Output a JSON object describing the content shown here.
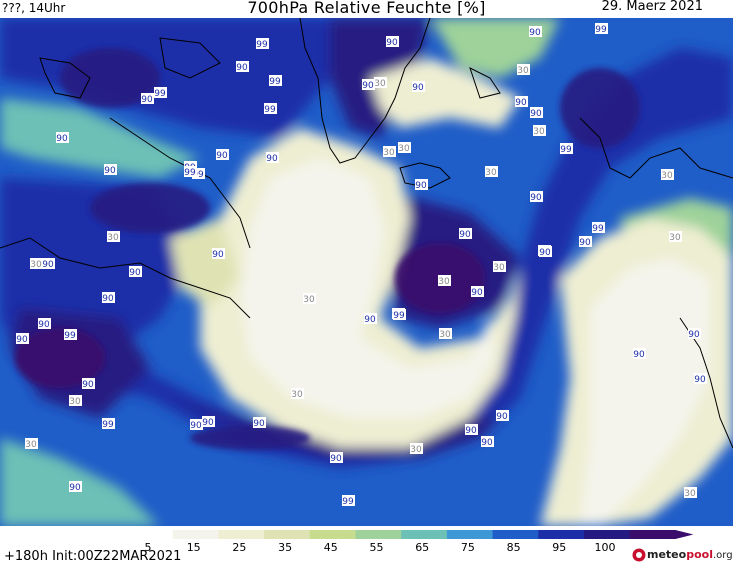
{
  "header": {
    "left": "???, 14Uhr",
    "title": "700hPa Relative Feuchte [%]",
    "date": "29. Maerz 2021"
  },
  "footer": {
    "forecast": "+180h Init:00Z22MAR2021",
    "logo_brand": "meteo",
    "logo_brand2": "pool",
    "logo_tld": ".org"
  },
  "colorbar": {
    "ticks": [
      "5",
      "15",
      "25",
      "35",
      "45",
      "55",
      "65",
      "75",
      "85",
      "95",
      "100"
    ],
    "colors": [
      "#ffffff",
      "#f4f4ec",
      "#eeeed2",
      "#dfe3b4",
      "#c8dc8f",
      "#9ed29a",
      "#6cc0b6",
      "#3d98d5",
      "#1f5dc8",
      "#1d2fa8",
      "#251a82",
      "#3a0d6c"
    ]
  },
  "contour_labels": [
    "99",
    "90",
    "99",
    "90",
    "99",
    "90",
    "99",
    "90",
    "99",
    "99",
    "90",
    "99",
    "90",
    "30",
    "90",
    "90",
    "90",
    "30",
    "90",
    "90",
    "99",
    "90",
    "30",
    "90",
    "30",
    "30",
    "30",
    "30",
    "90",
    "99",
    "90",
    "90",
    "90",
    "90",
    "30",
    "90",
    "90",
    "30",
    "90",
    "99",
    "90",
    "30",
    "90",
    "90",
    "90",
    "99",
    "30",
    "90",
    "30",
    "90",
    "30",
    "90",
    "30",
    "90",
    "99",
    "99",
    "90",
    "30",
    "90",
    "99",
    "90",
    "90",
    "30",
    "30",
    "90",
    "99",
    "30",
    "90",
    "30",
    "90",
    "90",
    "30",
    "30"
  ]
}
